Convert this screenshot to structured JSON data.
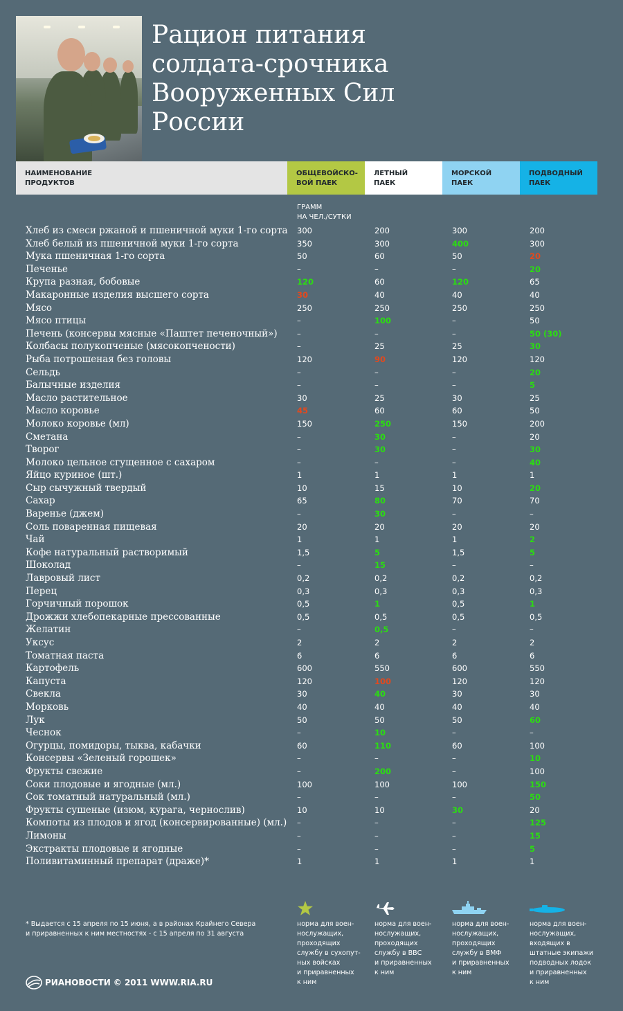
{
  "title": [
    "Рацион питания",
    "солдата-срочника",
    "Вооруженных Сил",
    "России"
  ],
  "header": {
    "name": [
      "НАИМЕНОВАНИЕ",
      "ПРОДУКТОВ"
    ],
    "columns": [
      {
        "lines": [
          "ОБЩЕВОЙСКО-",
          "ВОЙ ПАЕК"
        ],
        "color": "#b3c844"
      },
      {
        "lines": [
          "ЛЕТНЫЙ",
          "ПАЕК"
        ],
        "color": "#ffffff"
      },
      {
        "lines": [
          "МОРСКОЙ",
          "ПАЕК"
        ],
        "color": "#8fd3f2"
      },
      {
        "lines": [
          "ПОДВОДНЫЙ",
          "ПАЕК"
        ],
        "color": "#15b2e6"
      }
    ]
  },
  "unit": [
    "ГРАММ",
    "НА ЧЕЛ./СУТКИ"
  ],
  "colors": {
    "green": "#2cdc12",
    "red": "#e2491e",
    "background": "#556a76"
  },
  "rows": [
    {
      "name": "Хлеб из смеси ржаной и пшеничной муки 1-го сорта",
      "v": [
        "300",
        "200",
        "300",
        "200"
      ],
      "h": [
        "",
        "",
        "",
        ""
      ]
    },
    {
      "name": "Хлеб белый из пшеничной муки 1-го сорта",
      "v": [
        "350",
        "300",
        "400",
        "300"
      ],
      "h": [
        "",
        "",
        "green",
        ""
      ]
    },
    {
      "name": "Мука пшеничная 1-го сорта",
      "v": [
        "50",
        "60",
        "50",
        "20"
      ],
      "h": [
        "",
        "",
        "",
        "red"
      ]
    },
    {
      "name": "Печенье",
      "v": [
        "–",
        "–",
        "–",
        "20"
      ],
      "h": [
        "",
        "",
        "",
        "green"
      ]
    },
    {
      "name": "Крупа разная, бобовые",
      "v": [
        "120",
        "60",
        "120",
        "65"
      ],
      "h": [
        "green",
        "",
        "green",
        ""
      ]
    },
    {
      "name": "Макаронные изделия высшего сорта",
      "v": [
        "30",
        "40",
        "40",
        "40"
      ],
      "h": [
        "red",
        "",
        "",
        ""
      ]
    },
    {
      "name": "Мясо",
      "v": [
        "250",
        "250",
        "250",
        "250"
      ],
      "h": [
        "",
        "",
        "",
        ""
      ]
    },
    {
      "name": "Мясо птицы",
      "v": [
        "–",
        "100",
        "–",
        "50"
      ],
      "h": [
        "",
        "green",
        "",
        ""
      ]
    },
    {
      "name": "Печень (консервы мясные «Паштет печеночный»)",
      "v": [
        "–",
        "–",
        "–",
        "50 (30)"
      ],
      "h": [
        "",
        "",
        "",
        "green"
      ]
    },
    {
      "name": "Колбасы полукопченые (мясокопчености)",
      "v": [
        "–",
        "25",
        "25",
        "30"
      ],
      "h": [
        "",
        "",
        "",
        "green"
      ]
    },
    {
      "name": "Рыба потрошеная без головы",
      "v": [
        "120",
        "90",
        "120",
        "120"
      ],
      "h": [
        "",
        "red",
        "",
        ""
      ]
    },
    {
      "name": "Сельдь",
      "v": [
        "–",
        "–",
        "–",
        "20"
      ],
      "h": [
        "",
        "",
        "",
        "green"
      ]
    },
    {
      "name": "Балычные изделия",
      "v": [
        "–",
        "–",
        "–",
        "5"
      ],
      "h": [
        "",
        "",
        "",
        "green"
      ]
    },
    {
      "name": "Масло растительное",
      "v": [
        "30",
        "25",
        "30",
        "25"
      ],
      "h": [
        "",
        "",
        "",
        ""
      ]
    },
    {
      "name": "Масло коровье",
      "v": [
        "45",
        "60",
        "60",
        "50"
      ],
      "h": [
        "red",
        "",
        "",
        ""
      ]
    },
    {
      "name": "Молоко коровье (мл)",
      "v": [
        "150",
        "250",
        "150",
        "200"
      ],
      "h": [
        "",
        "green",
        "",
        ""
      ]
    },
    {
      "name": "Сметана",
      "v": [
        "–",
        "30",
        "–",
        "20"
      ],
      "h": [
        "",
        "green",
        "",
        ""
      ]
    },
    {
      "name": "Творог",
      "v": [
        "–",
        "30",
        "–",
        "30"
      ],
      "h": [
        "",
        "green",
        "",
        "green"
      ]
    },
    {
      "name": "Молоко цельное сгущенное с сахаром",
      "v": [
        "–",
        "–",
        "–",
        "40"
      ],
      "h": [
        "",
        "",
        "",
        "green"
      ]
    },
    {
      "name": "Яйцо куриное (шт.)",
      "v": [
        "1",
        "1",
        "1",
        "1"
      ],
      "h": [
        "",
        "",
        "",
        ""
      ]
    },
    {
      "name": "Сыр сычужный твердый",
      "v": [
        "10",
        "15",
        "10",
        "20"
      ],
      "h": [
        "",
        "",
        "",
        "green"
      ]
    },
    {
      "name": "Сахар",
      "v": [
        "65",
        "80",
        "70",
        "70"
      ],
      "h": [
        "",
        "green",
        "",
        ""
      ]
    },
    {
      "name": "Варенье (джем)",
      "v": [
        "–",
        "30",
        "–",
        "–"
      ],
      "h": [
        "",
        "green",
        "",
        ""
      ]
    },
    {
      "name": "Соль поваренная пищевая",
      "v": [
        "20",
        "20",
        "20",
        "20"
      ],
      "h": [
        "",
        "",
        "",
        ""
      ]
    },
    {
      "name": "Чай",
      "v": [
        "1",
        "1",
        "1",
        "2"
      ],
      "h": [
        "",
        "",
        "",
        "green"
      ]
    },
    {
      "name": "Кофе натуральный растворимый",
      "v": [
        "1,5",
        "5",
        "1,5",
        "5"
      ],
      "h": [
        "",
        "green",
        "",
        "green"
      ]
    },
    {
      "name": "Шоколад",
      "v": [
        "–",
        "15",
        "–",
        "–"
      ],
      "h": [
        "",
        "green",
        "",
        ""
      ]
    },
    {
      "name": "Лавровый лист",
      "v": [
        "0,2",
        "0,2",
        "0,2",
        "0,2"
      ],
      "h": [
        "",
        "",
        "",
        ""
      ]
    },
    {
      "name": "Перец",
      "v": [
        "0,3",
        "0,3",
        "0,3",
        "0,3"
      ],
      "h": [
        "",
        "",
        "",
        ""
      ]
    },
    {
      "name": "Горчичный порошок",
      "v": [
        "0,5",
        "1",
        "0,5",
        "1"
      ],
      "h": [
        "",
        "green",
        "",
        "green"
      ]
    },
    {
      "name": "Дрожжи хлебопекарные прессованные",
      "v": [
        "0,5",
        "0,5",
        "0,5",
        "0,5"
      ],
      "h": [
        "",
        "",
        "",
        ""
      ]
    },
    {
      "name": "Желатин",
      "v": [
        "–",
        "0,5",
        "–",
        "–"
      ],
      "h": [
        "",
        "green",
        "",
        ""
      ]
    },
    {
      "name": "Уксус",
      "v": [
        "2",
        "2",
        "2",
        "2"
      ],
      "h": [
        "",
        "",
        "",
        ""
      ]
    },
    {
      "name": "Томатная паста",
      "v": [
        "6",
        "6",
        "6",
        "6"
      ],
      "h": [
        "",
        "",
        "",
        ""
      ]
    },
    {
      "name": "Картофель",
      "v": [
        "600",
        "550",
        "600",
        "550"
      ],
      "h": [
        "",
        "",
        "",
        ""
      ]
    },
    {
      "name": "Капуста",
      "v": [
        "120",
        "100",
        "120",
        "120"
      ],
      "h": [
        "",
        "red",
        "",
        ""
      ]
    },
    {
      "name": "Свекла",
      "v": [
        "30",
        "40",
        "30",
        "30"
      ],
      "h": [
        "",
        "green",
        "",
        ""
      ]
    },
    {
      "name": "Морковь",
      "v": [
        "40",
        "40",
        "40",
        "40"
      ],
      "h": [
        "",
        "",
        "",
        ""
      ]
    },
    {
      "name": "Лук",
      "v": [
        "50",
        "50",
        "50",
        "60"
      ],
      "h": [
        "",
        "",
        "",
        "green"
      ]
    },
    {
      "name": "Чеснок",
      "v": [
        "–",
        "10",
        "–",
        "–"
      ],
      "h": [
        "",
        "green",
        "",
        ""
      ]
    },
    {
      "name": "Огурцы, помидоры, тыква, кабачки",
      "v": [
        "60",
        "110",
        "60",
        "100"
      ],
      "h": [
        "",
        "green",
        "",
        ""
      ]
    },
    {
      "name": "Консервы «Зеленый горошек»",
      "v": [
        "–",
        "–",
        "–",
        "10"
      ],
      "h": [
        "",
        "",
        "",
        "green"
      ]
    },
    {
      "name": "Фрукты свежие",
      "v": [
        "–",
        "200",
        "–",
        "100"
      ],
      "h": [
        "",
        "green",
        "",
        ""
      ]
    },
    {
      "name": "Соки плодовые и ягодные (мл.)",
      "v": [
        "100",
        "100",
        "100",
        "150"
      ],
      "h": [
        "",
        "",
        "",
        "green"
      ]
    },
    {
      "name": "Сок томатный натуральный (мл.)",
      "v": [
        "–",
        "–",
        "–",
        "50"
      ],
      "h": [
        "",
        "",
        "",
        "green"
      ]
    },
    {
      "name": "Фрукты сушеные (изюм, курага, чернослив)",
      "v": [
        "10",
        "10",
        "30",
        "20"
      ],
      "h": [
        "",
        "",
        "green",
        ""
      ]
    },
    {
      "name": "Компоты из плодов и ягод (консервированные) (мл.)",
      "v": [
        "–",
        "–",
        "–",
        "125"
      ],
      "h": [
        "",
        "",
        "",
        "green"
      ]
    },
    {
      "name": "Лимоны",
      "v": [
        "–",
        "–",
        "–",
        "15"
      ],
      "h": [
        "",
        "",
        "",
        "green"
      ]
    },
    {
      "name": "Экстракты плодовые и ягодные",
      "v": [
        "–",
        "–",
        "–",
        "5"
      ],
      "h": [
        "",
        "",
        "",
        "green"
      ]
    },
    {
      "name": "Поливитаминный препарат (драже)*",
      "v": [
        "1",
        "1",
        "1",
        "1"
      ],
      "h": [
        "",
        "",
        "",
        ""
      ]
    }
  ],
  "legend": [
    {
      "icon": "star-icon",
      "color": "#b3c844",
      "lines": [
        "норма для воен-",
        "нослужащих,",
        "проходящих",
        "службу в сухопут-",
        "ных войсках",
        "и приравненных",
        "к ним"
      ]
    },
    {
      "icon": "airplane-icon",
      "color": "#ffffff",
      "lines": [
        "норма для воен-",
        "нослужащих,",
        "проходящих",
        "службу в ВВС",
        "и приравненных",
        "к ним"
      ]
    },
    {
      "icon": "warship-icon",
      "color": "#8fd3f2",
      "lines": [
        "норма для воен-",
        "нослужащих,",
        "проходящих",
        "службу в ВМФ",
        "и приравненных",
        "к ним"
      ]
    },
    {
      "icon": "submarine-icon",
      "color": "#15b2e6",
      "lines": [
        "норма для воен-",
        "нослужащих,",
        "входящих в",
        "штатные экипажи",
        "подводных лодок",
        "и приравненных",
        "к ним"
      ]
    }
  ],
  "footnote": [
    "* Выдается с 15 апреля по 15 июня, а в районах Крайнего Севера",
    "и приравненных к ним местностях - с 15 апреля по 31 августа"
  ],
  "footer": {
    "brand": "РИАНОВОСТИ",
    "copyright": "© 2011",
    "site": "WWW.RIA.RU"
  }
}
